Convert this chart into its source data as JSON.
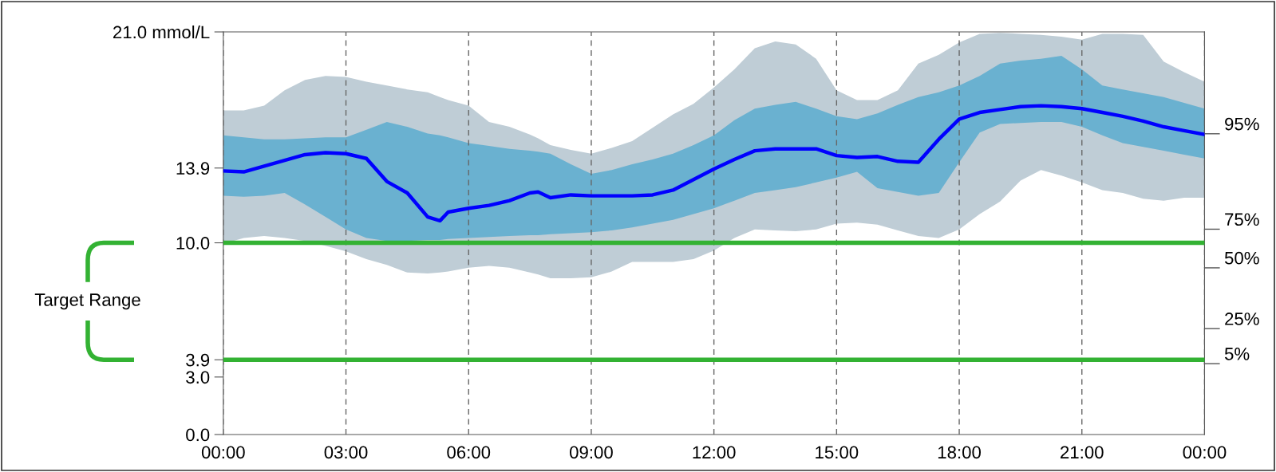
{
  "chart_data": {
    "type": "line",
    "xlim": [
      0,
      24
    ],
    "xticks": [
      {
        "value": 0,
        "label": "00:00"
      },
      {
        "value": 3,
        "label": "03:00"
      },
      {
        "value": 6,
        "label": "06:00"
      },
      {
        "value": 9,
        "label": "09:00"
      },
      {
        "value": 12,
        "label": "12:00"
      },
      {
        "value": 15,
        "label": "15:00"
      },
      {
        "value": 18,
        "label": "18:00"
      },
      {
        "value": 21,
        "label": "21:00"
      },
      {
        "value": 24,
        "label": "00:00"
      }
    ],
    "ylim": [
      0,
      21
    ],
    "yticks": [
      {
        "value": 0,
        "label": "0.0"
      },
      {
        "value": 3,
        "label": "3.0"
      },
      {
        "value": 3.9,
        "label": "3.9"
      },
      {
        "value": 10,
        "label": "10.0"
      },
      {
        "value": 13.9,
        "label": "13.9"
      },
      {
        "value": 21,
        "label": "21.0 mmol/L"
      }
    ],
    "grid": "x",
    "x": [
      0,
      0.5,
      1,
      1.5,
      2,
      2.5,
      3,
      3.5,
      4,
      4.5,
      5,
      5.3,
      5.5,
      6,
      6.5,
      7,
      7.5,
      7.7,
      8,
      8.5,
      9,
      9.5,
      10,
      10.5,
      11,
      11.5,
      12,
      12.5,
      13,
      13.5,
      14,
      14.5,
      15,
      15.5,
      16,
      16.5,
      17,
      17.5,
      18,
      18.5,
      19,
      19.5,
      20,
      20.5,
      21,
      21.5,
      22,
      22.5,
      23,
      23.5,
      24
    ],
    "series": [
      {
        "type": "line",
        "color": "#bfcdd6",
        "values": [
          null,
          null,
          null,
          null,
          null,
          null,
          null,
          null,
          null,
          null,
          null,
          null,
          null,
          null,
          null,
          null,
          null,
          null,
          null,
          null,
          null,
          null,
          null,
          null,
          null,
          null,
          null,
          null,
          null,
          null,
          null,
          null,
          null,
          null,
          null,
          null,
          null,
          null,
          null,
          null,
          null,
          null,
          null,
          null,
          null,
          null,
          null,
          null,
          null,
          null,
          null
        ],
        "lower": [
          9.95,
          10.25,
          10.35,
          10.25,
          10.1,
          9.85,
          9.55,
          9.15,
          8.85,
          8.45,
          8.4,
          8.45,
          8.5,
          8.7,
          8.8,
          8.7,
          8.45,
          8.35,
          8.15,
          8.15,
          8.2,
          8.5,
          9.0,
          9.0,
          9.0,
          9.15,
          9.6,
          10.25,
          10.7,
          10.65,
          10.6,
          10.7,
          11.0,
          11.05,
          10.95,
          10.65,
          10.35,
          10.25,
          10.7,
          11.5,
          12.15,
          13.25,
          13.8,
          13.5,
          13.15,
          12.75,
          12.6,
          12.3,
          12.2,
          12.35,
          12.35
        ],
        "upper": [
          16.9,
          16.9,
          17.15,
          17.95,
          18.5,
          18.7,
          18.65,
          18.4,
          18.2,
          18.0,
          17.85,
          17.6,
          17.45,
          17.15,
          16.3,
          16.05,
          15.65,
          15.45,
          15.1,
          14.85,
          14.65,
          14.95,
          15.3,
          16.0,
          16.7,
          17.25,
          18.1,
          19.05,
          20.15,
          20.5,
          20.35,
          19.6,
          17.95,
          17.45,
          17.45,
          17.95,
          19.35,
          19.8,
          20.45,
          20.9,
          20.95,
          20.9,
          20.85,
          20.75,
          20.6,
          20.9,
          20.9,
          20.85,
          19.45,
          18.9,
          18.4
        ]
      },
      {
        "type": "line",
        "color": "#6ab1d0",
        "values": [
          null,
          null,
          null,
          null,
          null,
          null,
          null,
          null,
          null,
          null,
          null,
          null,
          null,
          null,
          null,
          null,
          null,
          null,
          null,
          null,
          null,
          null,
          null,
          null,
          null,
          null,
          null,
          null,
          null,
          null,
          null,
          null,
          null,
          null,
          null,
          null,
          null,
          null,
          null,
          null,
          null,
          null,
          null,
          null,
          null,
          null,
          null,
          null,
          null,
          null,
          null
        ],
        "lower": [
          12.45,
          12.4,
          12.45,
          12.6,
          12.0,
          11.35,
          10.7,
          10.25,
          10.1,
          10.1,
          10.15,
          10.15,
          10.2,
          10.25,
          10.3,
          10.35,
          10.4,
          10.4,
          10.45,
          10.5,
          10.55,
          10.65,
          10.8,
          11.0,
          11.2,
          11.5,
          11.8,
          12.2,
          12.6,
          12.75,
          12.9,
          13.15,
          13.4,
          13.7,
          12.85,
          12.65,
          12.45,
          12.6,
          14.2,
          15.75,
          16.2,
          16.25,
          16.3,
          16.3,
          16.05,
          15.6,
          15.2,
          15.0,
          14.8,
          14.6,
          14.4
        ],
        "upper": [
          15.6,
          15.5,
          15.4,
          15.4,
          15.45,
          15.5,
          15.5,
          15.9,
          16.3,
          16.05,
          15.7,
          15.6,
          15.5,
          15.2,
          15.05,
          14.9,
          14.8,
          14.75,
          14.65,
          14.1,
          13.6,
          13.8,
          14.1,
          14.35,
          14.65,
          15.1,
          15.6,
          16.4,
          17.0,
          17.2,
          17.35,
          17.0,
          16.6,
          16.45,
          16.75,
          17.2,
          17.6,
          17.85,
          18.2,
          18.7,
          19.35,
          19.5,
          19.6,
          19.75,
          19.05,
          18.2,
          18.0,
          17.8,
          17.6,
          17.3,
          17.0
        ]
      },
      {
        "type": "line",
        "color": "#0000ff",
        "values": [
          13.75,
          13.7,
          14.0,
          14.3,
          14.6,
          14.7,
          14.65,
          14.4,
          13.2,
          12.6,
          11.35,
          11.15,
          11.6,
          11.8,
          11.95,
          12.2,
          12.6,
          12.65,
          12.35,
          12.5,
          12.45,
          12.45,
          12.45,
          12.5,
          12.75,
          13.3,
          13.85,
          14.35,
          14.8,
          14.9,
          14.9,
          14.9,
          14.55,
          14.45,
          14.5,
          14.25,
          14.2,
          15.4,
          16.45,
          16.8,
          16.95,
          17.1,
          17.15,
          17.1,
          17.0,
          16.8,
          16.6,
          16.35,
          16.05,
          15.85,
          15.65
        ]
      }
    ],
    "ref_lines": [
      {
        "axis": "y",
        "value": 10.0,
        "color": "#33b233"
      },
      {
        "axis": "y",
        "value": 3.9,
        "color": "#33b233"
      }
    ],
    "annotations": [
      "Target Range",
      "95%",
      "75%",
      "50%",
      "25%",
      "5%"
    ]
  }
}
